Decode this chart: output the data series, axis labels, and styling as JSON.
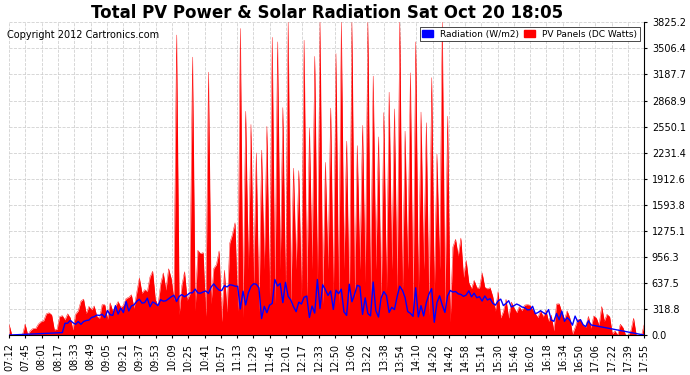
{
  "title": "Total PV Power & Solar Radiation Sat Oct 20 18:05",
  "copyright": "Copyright 2012 Cartronics.com",
  "ylim": [
    0.0,
    3825.2
  ],
  "yticks": [
    0.0,
    318.8,
    637.5,
    956.3,
    1275.1,
    1593.8,
    1912.6,
    2231.4,
    2550.1,
    2868.9,
    3187.7,
    3506.4,
    3825.2
  ],
  "background_color": "#ffffff",
  "plot_bg_color": "#ffffff",
  "grid_color": "#cccccc",
  "fill_color": "#ff0000",
  "line_color_radiation": "#0000ff",
  "legend_radiation_bg": "#0000ff",
  "legend_pv_bg": "#ff0000",
  "legend_radiation_label": "Radiation (W/m2)",
  "legend_pv_label": "PV Panels (DC Watts)",
  "title_fontsize": 12,
  "copyright_fontsize": 7,
  "tick_fontsize": 7,
  "time_labels": [
    "07:12",
    "07:45",
    "08:01",
    "08:17",
    "08:33",
    "08:49",
    "09:05",
    "09:21",
    "09:37",
    "09:53",
    "10:09",
    "10:25",
    "10:41",
    "10:57",
    "11:13",
    "11:29",
    "11:45",
    "12:01",
    "12:17",
    "12:33",
    "12:50",
    "13:06",
    "13:22",
    "13:38",
    "13:54",
    "14:10",
    "14:26",
    "14:42",
    "14:58",
    "15:14",
    "15:30",
    "15:46",
    "16:02",
    "16:18",
    "16:34",
    "16:50",
    "17:06",
    "17:22",
    "17:39",
    "17:55"
  ]
}
